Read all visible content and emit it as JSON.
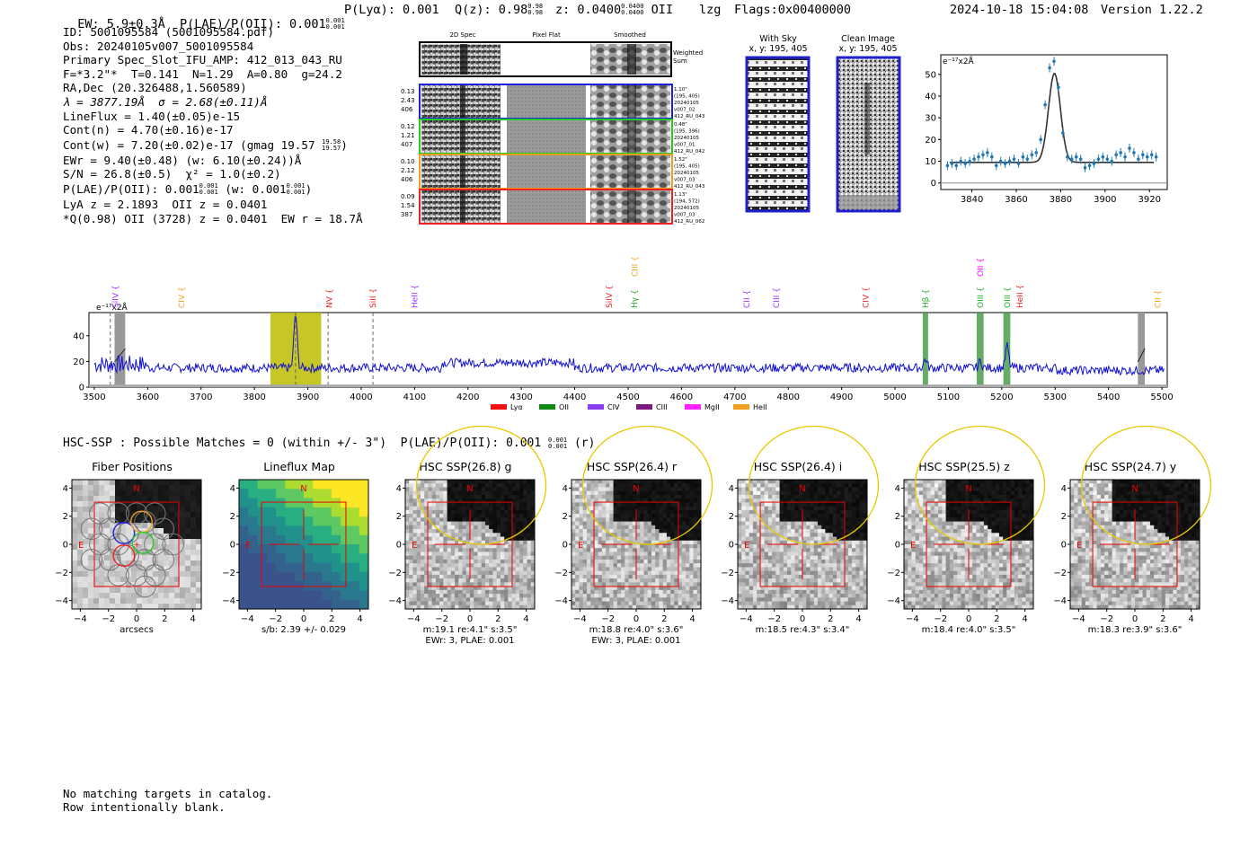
{
  "header": {
    "summary_line": "EW: 5.9±0.3Å  P(LAE)/P(OII): 0.001",
    "summary_ew_frac": [
      "0.001",
      "0.001"
    ],
    "plya": "P(Lyα): 0.001",
    "qz": "Q(z): 0.98",
    "qz_frac": [
      "0.98",
      "0.98"
    ],
    "z": "z: 0.0400",
    "z_frac": [
      "0.0400",
      "0.0400"
    ],
    "line_id": "OII",
    "cls": "lzg",
    "flags": "Flags:0x00400000",
    "timestamp": "2024-10-18 15:04:08",
    "version": "Version 1.22.2"
  },
  "info": {
    "id": "ID: 5001095584 (5001095584.pdf)",
    "obs": "Obs: 20240105v007_5001095584",
    "primary": "Primary Spec_Slot_IFU_AMP: 412_013_043_RU",
    "fit": "F=*3.2\"*  T=0.141  N=1.29  A=0.80  g=24.2",
    "radec": "RA,Dec (20.326488,1.560589)",
    "lambda": "λ = 3877.19Å  σ = 2.68(±0.11)Å",
    "lineflux": "LineFlux = 1.40(±0.05)e-15",
    "contn": "Cont(n) = 4.70(±0.16)e-17",
    "contw": "Cont(w) = 7.20(±0.02)e-17 (gmag 19.57",
    "contw_frac": [
      "19.58",
      "19.57"
    ],
    "ewr": "EWr = 9.40(±0.48) (w: 6.10(±0.24))Å",
    "sn": "S/N = 26.8(±0.5)  χ² = 1.0(±0.2)",
    "plae": "P(LAE)/P(OII): 0.001",
    "plae_frac": [
      "0.001",
      "0.001"
    ],
    "plae_w": "(w: 0.001",
    "plae_w_frac": [
      "0.001",
      "0.001"
    ],
    "lya_z": "LyA z = 2.1893  OII z = 0.0401",
    "q_line": "*Q(0.98) OII (3728) z = 0.0401  EW r = 18.7Å"
  },
  "cutouts": {
    "col_titles": [
      "2D Spec",
      "Pixel Flat",
      "Smoothed"
    ],
    "weighted_label": [
      "Weighted",
      "Sum"
    ],
    "rows": [
      {
        "left": [
          "0.13",
          "2.43",
          "406"
        ],
        "right": [
          "1.10\"",
          "(195, 405)",
          "20240105",
          "v007_02",
          "412_RU_043"
        ],
        "color": "#1f1fdd"
      },
      {
        "left": [
          "0.12",
          "1.21",
          "407"
        ],
        "right": [
          "0.48\"",
          "(195, 396)",
          "20240105",
          "v007_01",
          "412_RU_042"
        ],
        "color": "#22cc22"
      },
      {
        "left": [
          "0.10",
          "2.12",
          "406"
        ],
        "right": [
          "1.52\"",
          "(195, 405)",
          "20240105",
          "v007_03",
          "412_RU_043"
        ],
        "color": "#f0a020"
      },
      {
        "left": [
          "0.09",
          "1.54",
          "387"
        ],
        "right": [
          "1.13\"",
          "(194, 572)",
          "20240105",
          "v007_03",
          "412_RU_062"
        ],
        "color": "#ee2222"
      }
    ]
  },
  "sky": {
    "with_sky_title": "With Sky",
    "with_sky_xy": "x, y: 195, 405",
    "clean_title": "Clean Image",
    "clean_xy": "x, y: 195, 405"
  },
  "zoom_plot": {
    "unit_label": "e⁻¹⁷x2Å",
    "x_ticks": [
      "3840",
      "3860",
      "3880",
      "3900",
      "3920"
    ],
    "y_ticks": [
      "0",
      "10",
      "20",
      "30",
      "40",
      "50"
    ]
  },
  "spectrum": {
    "unit_label": "e⁻¹⁷x2Å",
    "x_ticks": [
      "3500",
      "3600",
      "3700",
      "3800",
      "3900",
      "4000",
      "4100",
      "4200",
      "4300",
      "4400",
      "4500",
      "4600",
      "4700",
      "4800",
      "4900",
      "5000",
      "5100",
      "5200",
      "5300",
      "5400",
      "5500"
    ],
    "y_ticks": [
      "0",
      "20",
      "40"
    ],
    "line_labels": [
      {
        "t": "SiIV",
        "w": 3540,
        "c": "#9b30ff",
        "row": 1
      },
      {
        "t": "CIV",
        "w": 3663,
        "c": "#f0a020",
        "row": 1
      },
      {
        "t": "NV",
        "w": 3940,
        "c": "#ee2222",
        "row": 1
      },
      {
        "t": "SiII",
        "w": 4022,
        "c": "#ee2222",
        "row": 1
      },
      {
        "t": "HeII",
        "w": 4100,
        "c": "#9b30ff",
        "row": 1
      },
      {
        "t": "SiIV",
        "w": 4465,
        "c": "#ee2222",
        "row": 1
      },
      {
        "t": "Hγ",
        "w": 4512,
        "c": "#22aa22",
        "row": 1
      },
      {
        "t": "CIII",
        "w": 4513,
        "c": "#f0a020",
        "row": 0
      },
      {
        "t": "CII",
        "w": 4722,
        "c": "#9b30ff",
        "row": 1
      },
      {
        "t": "CIII",
        "w": 4778,
        "c": "#9b30ff",
        "row": 1
      },
      {
        "t": "CIV",
        "w": 4945,
        "c": "#ee2222",
        "row": 1
      },
      {
        "t": "Hβ",
        "w": 5057,
        "c": "#22aa22",
        "row": 1
      },
      {
        "t": "OIII",
        "w": 5160,
        "c": "#22aa22",
        "row": 1
      },
      {
        "t": "OII",
        "w": 5160,
        "c": "#ff00ff",
        "row": 0
      },
      {
        "t": "OIII",
        "w": 5210,
        "c": "#22aa22",
        "row": 1
      },
      {
        "t": "HeII",
        "w": 5234,
        "c": "#ee2222",
        "row": 1
      },
      {
        "t": "CII",
        "w": 5492,
        "c": "#f0a020",
        "row": 1
      }
    ],
    "legend": [
      {
        "name": "Lyα",
        "color": "#ee1111"
      },
      {
        "name": "OII",
        "color": "#118811"
      },
      {
        "name": "CIV",
        "color": "#8a3cf0"
      },
      {
        "name": "CIII",
        "color": "#7a1a7a"
      },
      {
        "name": "MgII",
        "color": "#ff22ff"
      },
      {
        "name": "HeII",
        "color": "#f0a020"
      }
    ]
  },
  "hsc": {
    "header": "HSC-SSP : Possible Matches = 0 (within +/- 3\")  P(LAE)/P(OII): 0.001",
    "header_frac": [
      "0.001",
      "0.001"
    ],
    "header_suffix": "(r)",
    "x_ticks": [
      "−4",
      "−2",
      "0",
      "2",
      "4"
    ],
    "y_ticks": [
      "4",
      "2",
      "0",
      "−2",
      "−4"
    ],
    "n_label": "N",
    "e_label": "E",
    "panels": [
      {
        "title": "Fiber Positions",
        "cap1": "arcsecs",
        "cap2": ""
      },
      {
        "title": "Lineflux Map",
        "cap1": "s/b: 2.39 +/- 0.029",
        "cap2": ""
      },
      {
        "title": "HSC SSP(26.8) g",
        "cap1": "m:19.1  re:4.1\"  s:3.5\"",
        "cap2": "EWr: 3, PLAE: 0.001"
      },
      {
        "title": "HSC SSP(26.4) r",
        "cap1": "m:18.8  re:4.0\"  s:3.6\"",
        "cap2": "EWr: 3, PLAE: 0.001"
      },
      {
        "title": "HSC SSP(26.4) i",
        "cap1": "m:18.5  re:4.3\"  s:3.4\"",
        "cap2": ""
      },
      {
        "title": "HSC SSP(25.5) z",
        "cap1": "m:18.4  re:4.0\"  s:3.5\"",
        "cap2": ""
      },
      {
        "title": "HSC SSP(24.7) y",
        "cap1": "m:18.3  re:3.9\"  s:3.6\"",
        "cap2": ""
      }
    ]
  },
  "footer": {
    "line1": "No matching targets in catalog.",
    "line2": "Row intentionally blank."
  },
  "chart_data": [
    {
      "type": "scatter",
      "title": "",
      "ylabel": "e⁻¹⁷x2Å",
      "xlim": [
        3826,
        3928
      ],
      "ylim": [
        -3,
        59
      ],
      "points": [
        [
          3829,
          8
        ],
        [
          3831,
          9
        ],
        [
          3833,
          8
        ],
        [
          3835,
          10
        ],
        [
          3837,
          9
        ],
        [
          3839,
          10
        ],
        [
          3841,
          11
        ],
        [
          3843,
          12
        ],
        [
          3845,
          13
        ],
        [
          3847,
          14
        ],
        [
          3849,
          12
        ],
        [
          3851,
          8
        ],
        [
          3853,
          10
        ],
        [
          3855,
          9
        ],
        [
          3857,
          10
        ],
        [
          3859,
          11
        ],
        [
          3861,
          9
        ],
        [
          3863,
          12
        ],
        [
          3865,
          11
        ],
        [
          3867,
          13
        ],
        [
          3869,
          14
        ],
        [
          3871,
          20
        ],
        [
          3873,
          36
        ],
        [
          3875,
          53
        ],
        [
          3877,
          56
        ],
        [
          3879,
          44
        ],
        [
          3881,
          23
        ],
        [
          3883,
          12
        ],
        [
          3885,
          11
        ],
        [
          3887,
          12
        ],
        [
          3889,
          11
        ],
        [
          3891,
          7
        ],
        [
          3893,
          8
        ],
        [
          3895,
          9
        ],
        [
          3897,
          11
        ],
        [
          3899,
          12
        ],
        [
          3901,
          11
        ],
        [
          3903,
          10
        ],
        [
          3905,
          13
        ],
        [
          3907,
          14
        ],
        [
          3909,
          12
        ],
        [
          3911,
          16
        ],
        [
          3913,
          14
        ],
        [
          3915,
          11
        ],
        [
          3917,
          13
        ],
        [
          3919,
          12
        ],
        [
          3921,
          13
        ],
        [
          3923,
          12
        ]
      ],
      "fit": {
        "model": "gaussian",
        "center": 3877.19,
        "sigma": 2.68,
        "amplitude": 41,
        "baseline": 9.5
      }
    },
    {
      "type": "line",
      "title": "",
      "ylabel": "e⁻¹⁷x2Å",
      "xlim": [
        3490,
        5510
      ],
      "ylim": [
        0,
        58
      ],
      "baseline": 15,
      "peaks": [
        [
          3877,
          57
        ],
        [
          5057,
          22
        ],
        [
          5160,
          20
        ],
        [
          5210,
          32
        ]
      ],
      "highlight_bands": [
        [
          3830,
          3925,
          "#bcbc00"
        ],
        [
          5052,
          5062,
          "#4a9e4a"
        ],
        [
          5153,
          5166,
          "#4a9e4a"
        ],
        [
          5203,
          5216,
          "#4a9e4a"
        ]
      ],
      "masked_bands": [
        [
          3538,
          3558
        ],
        [
          5455,
          5468
        ]
      ],
      "dashed_lines": [
        3530,
        3877,
        3938,
        4022
      ]
    }
  ]
}
